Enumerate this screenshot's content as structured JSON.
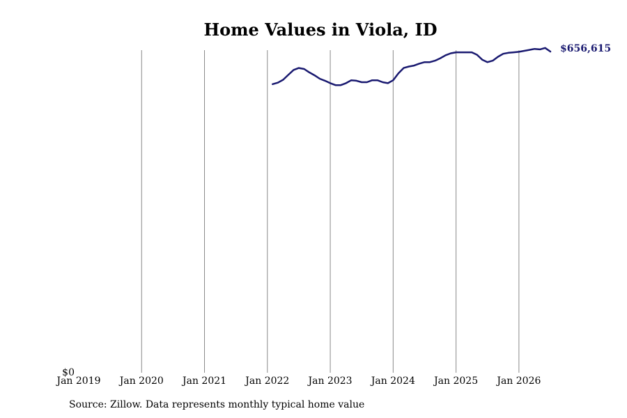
{
  "chart_data": {
    "type": "line",
    "title": "Home Values in Viola, ID",
    "source": "Source: Zillow. Data represents monthly typical home value",
    "x_ticks": [
      "Jan 2019",
      "Jan 2020",
      "Jan 2021",
      "Jan 2022",
      "Jan 2023",
      "Jan 2024",
      "Jan 2025",
      "Jan 2026"
    ],
    "x_tick_years": [
      2019,
      2020,
      2021,
      2022,
      2023,
      2024,
      2025,
      2026
    ],
    "y_tick_label": "$0",
    "xlim": [
      2019.0,
      2026.5
    ],
    "ylim": [
      0,
      656615
    ],
    "grid": "vertical",
    "line_color": "#191970",
    "end_label": "$656,615",
    "series": [
      {
        "x": [
          "2022-02",
          "2022-03",
          "2022-04",
          "2022-05",
          "2022-06",
          "2022-07",
          "2022-08",
          "2022-09",
          "2022-10",
          "2022-11",
          "2022-12",
          "2023-01",
          "2023-02",
          "2023-03",
          "2023-04",
          "2023-05",
          "2023-06",
          "2023-07",
          "2023-08",
          "2023-09",
          "2023-10",
          "2023-11",
          "2023-12",
          "2024-01",
          "2024-02",
          "2024-03",
          "2024-04",
          "2024-05",
          "2024-06",
          "2024-07",
          "2024-08",
          "2024-09",
          "2024-10",
          "2024-11",
          "2024-12",
          "2025-01",
          "2025-02",
          "2025-03",
          "2025-04",
          "2025-05",
          "2025-06",
          "2025-07",
          "2025-08",
          "2025-09",
          "2025-10",
          "2025-11",
          "2025-12",
          "2026-01",
          "2026-02",
          "2026-03",
          "2026-04",
          "2026-05",
          "2026-06",
          "2026-07"
        ],
        "values": [
          590000,
          593000,
          599000,
          609000,
          619000,
          623000,
          621000,
          614000,
          608000,
          601000,
          597000,
          592000,
          588000,
          588000,
          592000,
          598000,
          597000,
          594000,
          594000,
          598000,
          598000,
          594000,
          592000,
          598000,
          612000,
          623000,
          626000,
          628000,
          632000,
          635000,
          635000,
          638000,
          643000,
          649000,
          653000,
          655000,
          655000,
          655000,
          655000,
          650000,
          640000,
          635000,
          638000,
          646000,
          652000,
          654000,
          655000,
          656000,
          658000,
          660000,
          662000,
          661000,
          664000,
          656615
        ]
      }
    ]
  }
}
